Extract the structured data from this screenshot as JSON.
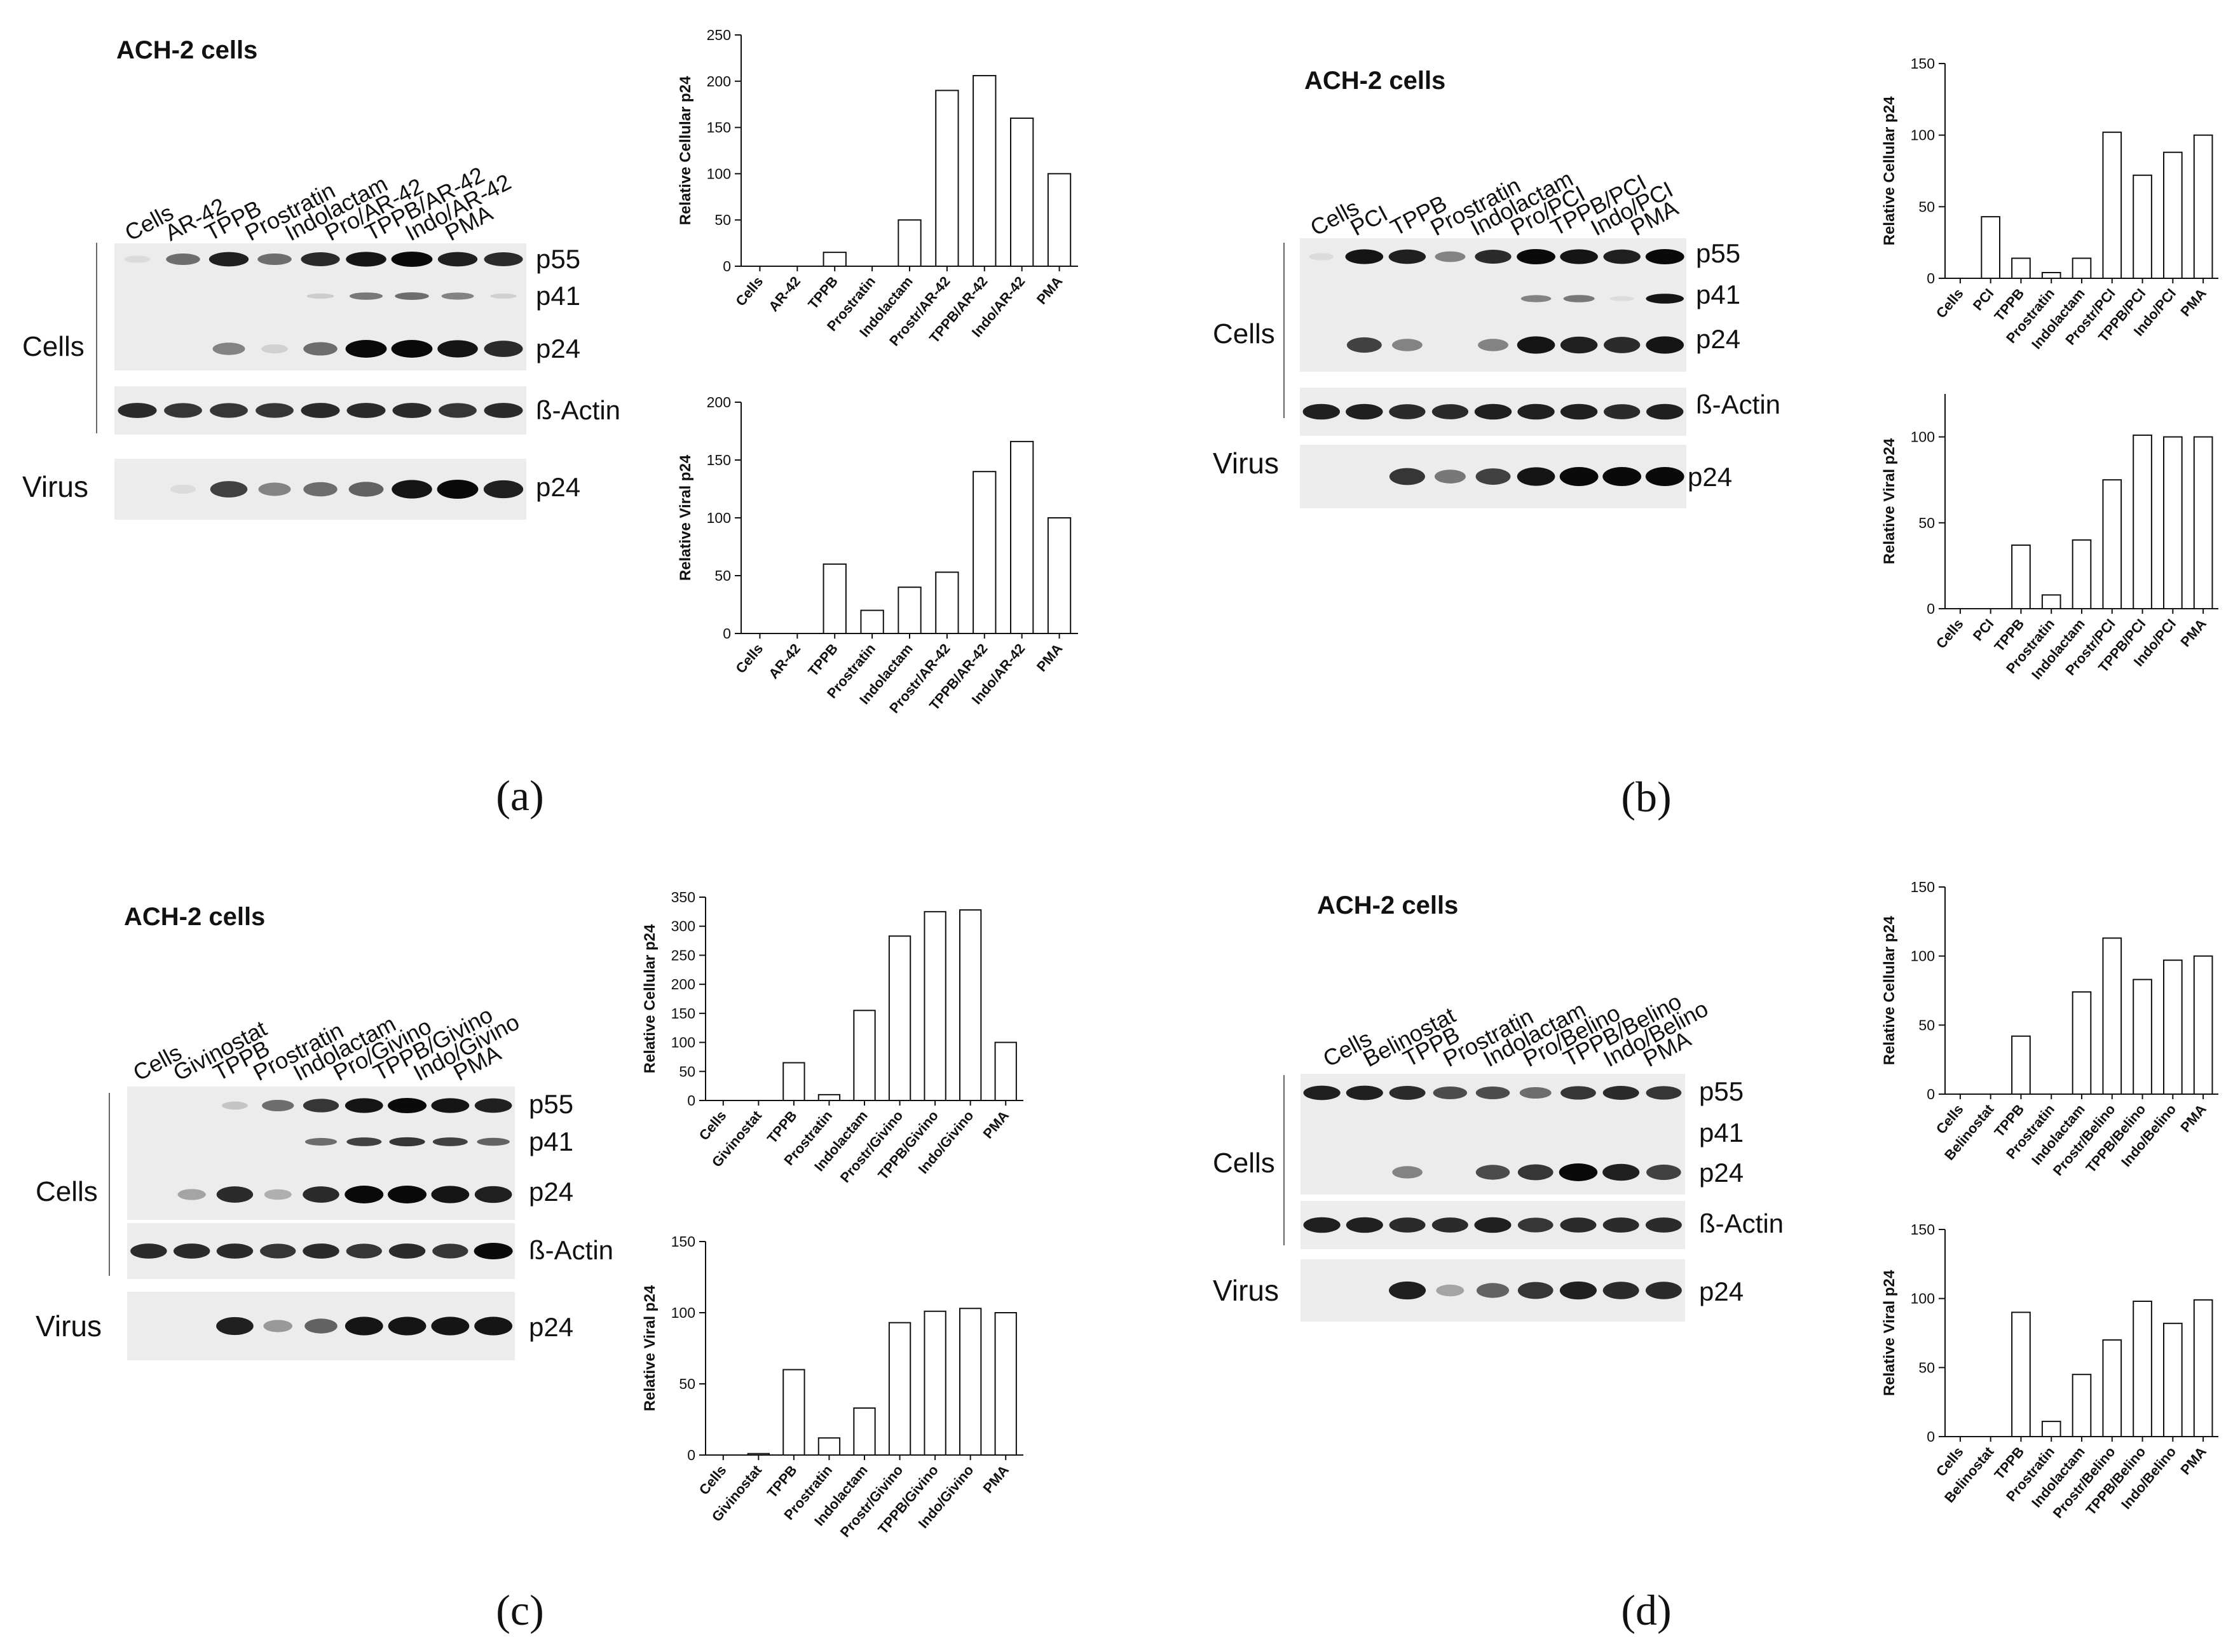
{
  "panels": [
    {
      "id": "a",
      "caption": "(a)",
      "blot": {
        "title": "ACH-2 cells",
        "lanes": [
          "Cells",
          "AR-42",
          "TPPB",
          "Prostratin",
          "Indolactam",
          "Pro/AR-42",
          "TPPB/AR-42",
          "Indo/AR-42",
          "PMA"
        ],
        "group_labels": [
          "Cells",
          "Virus"
        ],
        "band_labels": [
          "p55",
          "p41",
          "p24",
          "ß-Actin",
          "p24"
        ]
      }
    },
    {
      "id": "b",
      "caption": "(b)",
      "blot": {
        "title": "ACH-2 cells",
        "lanes": [
          "Cells",
          "PCI",
          "TPPB",
          "Prostratin",
          "Indolactam",
          "Pro/PCI",
          "TPPB/PCI",
          "Indo/PCI",
          "PMA"
        ],
        "group_labels": [
          "Cells",
          "Virus"
        ],
        "band_labels": [
          "p55",
          "p41",
          "p24",
          "ß-Actin",
          "p24"
        ]
      }
    },
    {
      "id": "c",
      "caption": "(c)",
      "blot": {
        "title": "ACH-2 cells",
        "lanes": [
          "Cells",
          "Givinostat",
          "TPPB",
          "Prostratin",
          "Indolactam",
          "Pro/Givino",
          "TPPB/Givino",
          "Indo/Givino",
          "PMA"
        ],
        "group_labels": [
          "Cells",
          "Virus"
        ],
        "band_labels": [
          "p55",
          "p41",
          "p24",
          "ß-Actin",
          "p24"
        ]
      }
    },
    {
      "id": "d",
      "caption": "(d)",
      "blot": {
        "title": "ACH-2 cells",
        "lanes": [
          "Cells",
          "Belinostat",
          "TPPB",
          "Prostratin",
          "Indolactam",
          "Pro/Belino",
          "TPPB/Belino",
          "Indo/Belino",
          "PMA"
        ],
        "group_labels": [
          "Cells",
          "Virus"
        ],
        "band_labels": [
          "p55",
          "p41",
          "p24",
          "ß-Actin",
          "p24"
        ]
      }
    }
  ],
  "blot_intensity": {
    "a": {
      "p55": [
        0.05,
        0.55,
        0.9,
        0.55,
        0.85,
        0.95,
        1,
        0.9,
        0.85
      ],
      "p41": [
        0,
        0,
        0,
        0,
        0.12,
        0.5,
        0.55,
        0.45,
        0.1
      ],
      "p24": [
        0,
        0,
        0.45,
        0.1,
        0.55,
        1,
        1,
        0.95,
        0.85
      ],
      "actin": [
        0.85,
        0.8,
        0.8,
        0.8,
        0.85,
        0.85,
        0.85,
        0.8,
        0.85
      ],
      "virus": [
        0,
        0.05,
        0.75,
        0.45,
        0.55,
        0.6,
        0.95,
        1,
        0.9
      ]
    },
    "b": {
      "p55": [
        0.05,
        0.95,
        0.9,
        0.45,
        0.85,
        1,
        0.95,
        0.9,
        1
      ],
      "p41": [
        0,
        0,
        0,
        0,
        0,
        0.45,
        0.5,
        0.05,
        0.95
      ],
      "p24": [
        0,
        0.75,
        0.45,
        0,
        0.45,
        0.95,
        0.9,
        0.85,
        0.95
      ],
      "actin": [
        0.9,
        0.9,
        0.85,
        0.85,
        0.9,
        0.9,
        0.9,
        0.85,
        0.9
      ],
      "virus": [
        0,
        0,
        0.8,
        0.5,
        0.75,
        0.95,
        1,
        1,
        1
      ]
    },
    "c": {
      "p55": [
        0,
        0,
        0.15,
        0.55,
        0.8,
        0.95,
        1,
        0.95,
        0.9
      ],
      "p41": [
        0,
        0,
        0,
        0,
        0.55,
        0.75,
        0.8,
        0.75,
        0.6
      ],
      "p24": [
        0,
        0.3,
        0.85,
        0.25,
        0.85,
        1,
        1,
        0.95,
        0.9
      ],
      "actin": [
        0.85,
        0.85,
        0.85,
        0.8,
        0.85,
        0.8,
        0.85,
        0.8,
        1
      ],
      "virus": [
        0,
        0,
        0.9,
        0.35,
        0.6,
        0.95,
        0.95,
        0.95,
        0.95
      ]
    },
    "d": {
      "p55": [
        0.9,
        0.9,
        0.85,
        0.7,
        0.7,
        0.55,
        0.8,
        0.85,
        0.8
      ],
      "p41": [
        0,
        0,
        0,
        0,
        0,
        0,
        0,
        0,
        0
      ],
      "p24": [
        0,
        0,
        0.45,
        0,
        0.7,
        0.8,
        1,
        0.9,
        0.75
      ],
      "actin": [
        0.9,
        0.9,
        0.85,
        0.85,
        0.9,
        0.8,
        0.85,
        0.85,
        0.85
      ],
      "virus": [
        0,
        0,
        0.9,
        0.3,
        0.6,
        0.8,
        0.9,
        0.85,
        0.85
      ]
    }
  },
  "chart_data": [
    {
      "panel": "a",
      "type": "bar",
      "ylabel": "Relative Cellular p24",
      "ylim": [
        0,
        250
      ],
      "yticks": [
        0,
        50,
        100,
        150,
        200,
        250
      ],
      "categories": [
        "Cells",
        "AR-42",
        "TPPB",
        "Prostratin",
        "Indolactam",
        "Prostr/AR-42",
        "TPPB/AR-42",
        "Indo/AR-42",
        "PMA"
      ],
      "values": [
        0,
        0,
        15,
        0,
        50,
        190,
        206,
        160,
        100
      ]
    },
    {
      "panel": "a",
      "type": "bar",
      "ylabel": "Relative Viral p24",
      "ylim": [
        0,
        200
      ],
      "yticks": [
        0,
        50,
        100,
        150,
        200
      ],
      "categories": [
        "Cells",
        "AR-42",
        "TPPB",
        "Prostratin",
        "Indolactam",
        "Prostr/AR-42",
        "TPPB/AR-42",
        "Indo/AR-42",
        "PMA"
      ],
      "values": [
        0,
        0,
        60,
        20,
        40,
        53,
        140,
        166,
        100
      ]
    },
    {
      "panel": "b",
      "type": "bar",
      "ylabel": "Relative Cellular p24",
      "ylim": [
        0,
        150
      ],
      "yticks": [
        0,
        50,
        100,
        150
      ],
      "categories": [
        "Cells",
        "PCI",
        "TPPB",
        "Prostratin",
        "Indolactam",
        "Prostr/PCI",
        "TPPB/PCI",
        "Indo/PCI",
        "PMA"
      ],
      "values": [
        0,
        43,
        14,
        4,
        14,
        102,
        72,
        88,
        100
      ]
    },
    {
      "panel": "b",
      "type": "bar",
      "ylabel": "Relative Viral p24",
      "ylim": [
        0,
        125
      ],
      "yticks": [
        0,
        50,
        100
      ],
      "categories": [
        "Cells",
        "PCI",
        "TPPB",
        "Prostratin",
        "Indolactam",
        "Prostr/PCI",
        "TPPB/PCI",
        "Indo/PCI",
        "PMA"
      ],
      "values": [
        0,
        0,
        37,
        8,
        40,
        75,
        101,
        100,
        100
      ]
    },
    {
      "panel": "c",
      "type": "bar",
      "ylabel": "Relative Cellular p24",
      "ylim": [
        0,
        350
      ],
      "yticks": [
        0,
        50,
        100,
        150,
        200,
        250,
        300,
        350
      ],
      "categories": [
        "Cells",
        "Givinostat",
        "TPPB",
        "Prostratin",
        "Indolactam",
        "Prostr/Givino",
        "TPPB/Givino",
        "Indo/Givino",
        "PMA"
      ],
      "values": [
        0,
        0,
        65,
        10,
        155,
        283,
        325,
        328,
        100
      ]
    },
    {
      "panel": "c",
      "type": "bar",
      "ylabel": "Relative Viral p24",
      "ylim": [
        0,
        150
      ],
      "yticks": [
        0,
        50,
        100,
        150
      ],
      "categories": [
        "Cells",
        "Givinostat",
        "TPPB",
        "Prostratin",
        "Indolactam",
        "Prostr/Givino",
        "TPPB/Givino",
        "Indo/Givino",
        "PMA"
      ],
      "values": [
        0,
        1,
        60,
        12,
        33,
        93,
        101,
        103,
        100
      ]
    },
    {
      "panel": "d",
      "type": "bar",
      "ylabel": "Relative Cellular p24",
      "ylim": [
        0,
        150
      ],
      "yticks": [
        0,
        50,
        100,
        150
      ],
      "categories": [
        "Cells",
        "Belinostat",
        "TPPB",
        "Prostratin",
        "Indolactam",
        "Prostr/Belino",
        "TPPB/Belino",
        "Indo/Belino",
        "PMA"
      ],
      "values": [
        0,
        0,
        42,
        0,
        74,
        113,
        83,
        97,
        100
      ]
    },
    {
      "panel": "d",
      "type": "bar",
      "ylabel": "Relative Viral p24",
      "ylim": [
        0,
        150
      ],
      "yticks": [
        0,
        50,
        100,
        150
      ],
      "categories": [
        "Cells",
        "Belinostat",
        "TPPB",
        "Prostratin",
        "Indolactam",
        "Prostr/Belino",
        "TPPB/Belino",
        "Indo/Belino",
        "PMA"
      ],
      "values": [
        0,
        0,
        90,
        11,
        45,
        70,
        98,
        82,
        99
      ]
    }
  ]
}
